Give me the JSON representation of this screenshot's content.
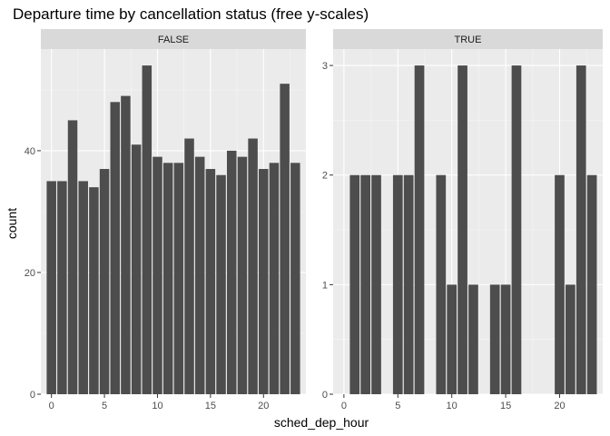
{
  "chart_data": {
    "type": "bar",
    "title": "Departure time by cancellation status (free y-scales)",
    "xlabel": "sched_dep_hour",
    "ylabel": "count",
    "grid": true,
    "facets": [
      {
        "name": "FALSE",
        "xlim": [
          -1,
          24
        ],
        "ylim": [
          0,
          56.7
        ],
        "x_ticks": [
          0,
          5,
          10,
          15,
          20
        ],
        "y_ticks": [
          0,
          20,
          40
        ],
        "x": [
          0,
          1,
          2,
          3,
          4,
          5,
          6,
          7,
          8,
          9,
          10,
          11,
          12,
          13,
          14,
          15,
          16,
          17,
          18,
          19,
          20,
          21,
          22,
          23
        ],
        "values": [
          35,
          35,
          45,
          35,
          34,
          37,
          48,
          49,
          41,
          54,
          39,
          38,
          38,
          42,
          39,
          37,
          36,
          40,
          39,
          42,
          37,
          38,
          51,
          38
        ]
      },
      {
        "name": "TRUE",
        "xlim": [
          -1,
          24
        ],
        "ylim": [
          0,
          3.15
        ],
        "x_ticks": [
          0,
          5,
          10,
          15,
          20
        ],
        "y_ticks": [
          0,
          1,
          2,
          3
        ],
        "x": [
          1,
          2,
          3,
          5,
          6,
          7,
          9,
          10,
          11,
          12,
          14,
          15,
          16,
          20,
          21,
          22,
          23
        ],
        "values": [
          2,
          2,
          2,
          2,
          2,
          3,
          2,
          1,
          3,
          1,
          1,
          1,
          3,
          2,
          1,
          3,
          2
        ]
      }
    ]
  },
  "colors": {
    "panel_bg": "#ebebeb",
    "strip_bg": "#d9d9d9",
    "bar": "#4d4d4d",
    "grid_major": "#ffffff"
  }
}
